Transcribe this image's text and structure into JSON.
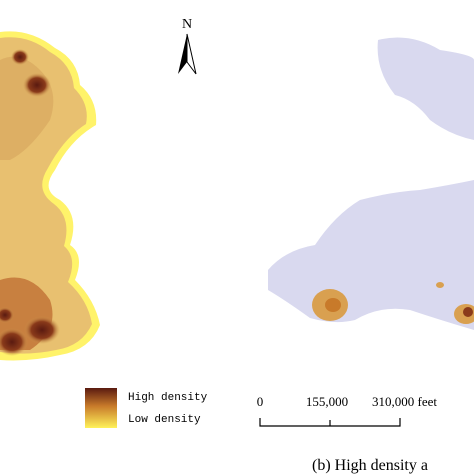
{
  "north_arrow": {
    "label": "N"
  },
  "legend": {
    "high": "High density",
    "low": "Low density"
  },
  "scale_bar": {
    "labels": [
      "0",
      "155,000",
      "310,000 feet"
    ]
  },
  "caption": "(b) High density a"
}
